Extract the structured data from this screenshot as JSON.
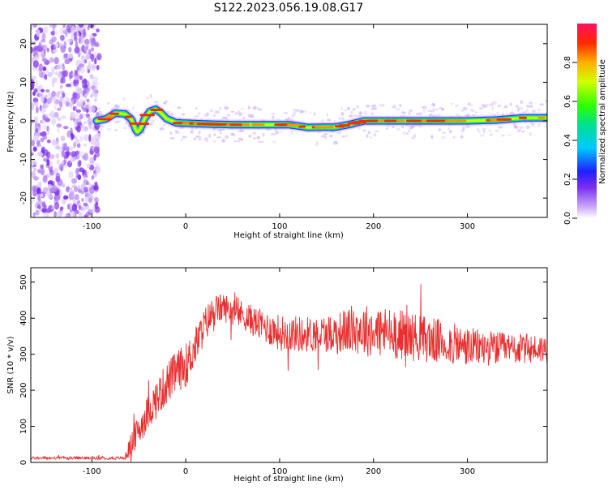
{
  "figure": {
    "title": "S122.2023.056.19.08.G17"
  },
  "chart_data": [
    {
      "type": "heatmap",
      "title": "S122.2023.056.19.08.G17",
      "xlabel": "Height of straight line (km)",
      "ylabel": "Frequency (Hz)",
      "xlim": [
        -165,
        385
      ],
      "ylim": [
        -25,
        25
      ],
      "xticks": [
        -100,
        0,
        100,
        200,
        300
      ],
      "yticks": [
        -20,
        -10,
        0,
        10,
        20
      ],
      "xtick_labels": [
        "-100",
        "0",
        "100",
        "200",
        "300"
      ],
      "ytick_labels": [
        "-20",
        "-10",
        "0",
        "10",
        "20"
      ],
      "noise_region_x": [
        -165,
        -92
      ],
      "ridge": {
        "x": [
          -95,
          -85,
          -75,
          -65,
          -58,
          -52,
          -48,
          -44,
          -38,
          -32,
          -27,
          -20,
          -10,
          0,
          20,
          50,
          80,
          110,
          122,
          130,
          160,
          175,
          190,
          220,
          260,
          300,
          330,
          360,
          385
        ],
        "frequency": [
          0,
          0.5,
          2.0,
          1.8,
          0.5,
          -3.0,
          -2.0,
          0.5,
          2.5,
          3.0,
          2.2,
          0.5,
          -0.5,
          -0.6,
          -0.8,
          -1.0,
          -1.0,
          -1.0,
          -1.4,
          -1.7,
          -1.6,
          -0.9,
          0.0,
          0.0,
          0.0,
          0.0,
          0.2,
          0.8,
          0.8
        ]
      },
      "colorbar": {
        "label": "Normalized spectral amplitude",
        "range": [
          0,
          1
        ],
        "ticks": [
          0.0,
          0.2,
          0.4,
          0.6,
          0.8
        ],
        "tick_labels": [
          "0.0",
          "0.2",
          "0.4",
          "0.6",
          "0.8"
        ]
      },
      "grid": false
    },
    {
      "type": "line",
      "xlabel": "Height of straight line (km)",
      "ylabel": "SNR (10 * v/v)",
      "xlim": [
        -165,
        385
      ],
      "ylim": [
        0,
        540
      ],
      "xticks": [
        -100,
        0,
        100,
        200,
        300
      ],
      "yticks": [
        0,
        100,
        200,
        300,
        400,
        500
      ],
      "xtick_labels": [
        "-100",
        "0",
        "100",
        "200",
        "300"
      ],
      "ytick_labels": [
        "0",
        "100",
        "200",
        "300",
        "400",
        "500"
      ],
      "series": [
        {
          "color": "#e83030",
          "trend_x": [
            -165,
            -100,
            -65,
            -60,
            -50,
            -40,
            -30,
            -20,
            -10,
            0,
            10,
            20,
            30,
            40,
            60,
            80,
            100,
            130,
            160,
            180,
            200,
            230,
            260,
            300,
            340,
            385
          ],
          "trend_y": [
            12,
            12,
            12,
            40,
            90,
            140,
            180,
            220,
            250,
            270,
            320,
            380,
            420,
            430,
            410,
            380,
            360,
            355,
            360,
            370,
            365,
            355,
            340,
            320,
            315,
            315
          ],
          "noise_amplitude": [
            4,
            4,
            4,
            30,
            45,
            50,
            55,
            60,
            60,
            60,
            55,
            50,
            45,
            40,
            40,
            45,
            50,
            50,
            55,
            70,
            75,
            70,
            65,
            55,
            45,
            40
          ]
        }
      ],
      "grid": false
    }
  ]
}
